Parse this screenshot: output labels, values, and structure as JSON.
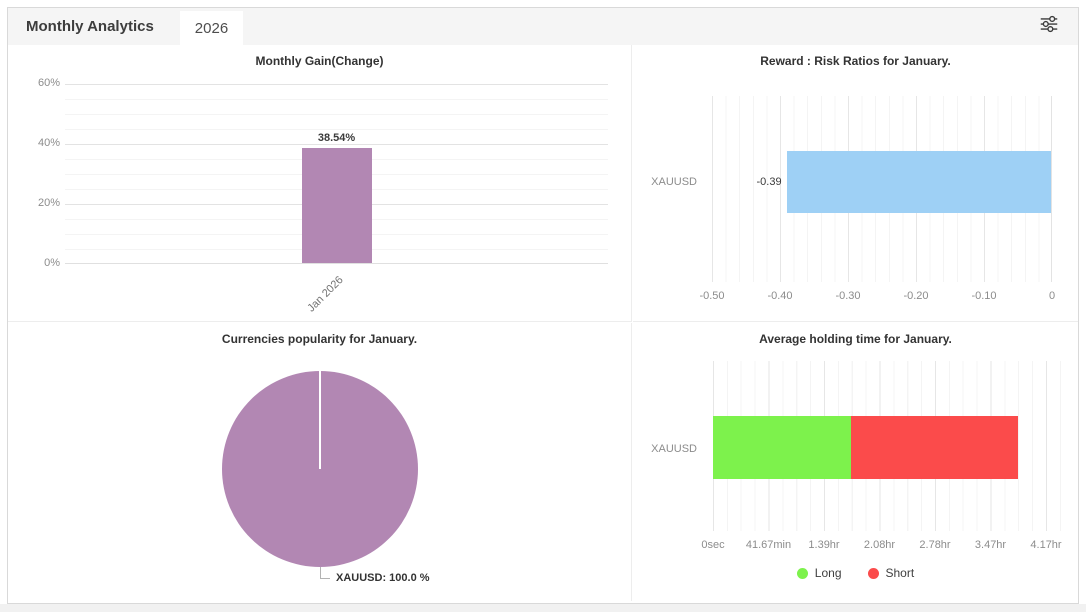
{
  "header": {
    "title": "Monthly Analytics",
    "tab": "2026"
  },
  "colors": {
    "purple": "#b287b3",
    "blue": "#9ed0f5",
    "green": "#7df24c",
    "red": "#fb4b4b",
    "header_bg": "#f5f5f5"
  },
  "chart_data": [
    {
      "type": "bar",
      "title": "Monthly Gain(Change)",
      "categories": [
        "Jan 2026"
      ],
      "values": [
        38.54
      ],
      "value_labels": [
        "38.54%"
      ],
      "y_ticks": [
        "60%",
        "40%",
        "20%",
        "0%"
      ],
      "ylabel": "",
      "xlabel": "",
      "y_axis_max": 60,
      "bar_color": "#b287b3",
      "grid": "on"
    },
    {
      "type": "bar-horizontal",
      "title": "Reward : Risk Ratios for January.",
      "categories": [
        "XAUUSD"
      ],
      "values": [
        -0.39
      ],
      "value_labels": [
        "-0.39"
      ],
      "x_ticks": [
        "-0.50",
        "-0.40",
        "-0.30",
        "-0.20",
        "-0.10",
        "0"
      ],
      "xlim": [
        -0.5,
        0
      ],
      "bar_color": "#9ed0f5",
      "grid": "on"
    },
    {
      "type": "pie",
      "title": "Currencies popularity for January.",
      "slices": [
        {
          "label": "XAUUSD",
          "value": 100.0,
          "color": "#b287b3"
        }
      ],
      "callout_label": "XAUUSD: 100.0 %"
    },
    {
      "type": "bar-horizontal-stacked",
      "title": "Average holding time for January.",
      "categories": [
        "XAUUSD"
      ],
      "series": [
        {
          "name": "Long",
          "color": "#7df24c",
          "hours": 1.73
        },
        {
          "name": "Short",
          "color": "#fb4b4b",
          "hours": 2.08
        }
      ],
      "x_ticks": [
        "0sec",
        "41.67min",
        "1.39hr",
        "2.08hr",
        "2.78hr",
        "3.47hr",
        "4.17hr"
      ],
      "x_axis_max_hours": 4.4,
      "legend": [
        {
          "label": "Long",
          "color": "#7df24c"
        },
        {
          "label": "Short",
          "color": "#fb4b4b"
        }
      ],
      "legend_position": "bottom"
    }
  ]
}
